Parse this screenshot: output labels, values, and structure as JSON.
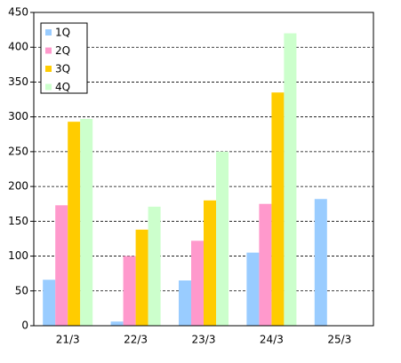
{
  "chart_data": {
    "type": "bar",
    "categories": [
      "21/3",
      "22/3",
      "23/3",
      "24/3",
      "25/3"
    ],
    "series": [
      {
        "name": "1Q",
        "color": "#99ccff",
        "values": [
          66,
          6,
          65,
          105,
          182
        ]
      },
      {
        "name": "2Q",
        "color": "#ff99cc",
        "values": [
          173,
          100,
          122,
          175,
          null
        ]
      },
      {
        "name": "3Q",
        "color": "#ffcc00",
        "values": [
          293,
          138,
          180,
          335,
          null
        ]
      },
      {
        "name": "4Q",
        "color": "#ccffcc",
        "values": [
          297,
          171,
          250,
          420,
          null
        ]
      }
    ],
    "ylim": [
      0,
      450
    ],
    "yticks": [
      0,
      50,
      100,
      150,
      200,
      250,
      300,
      350,
      400,
      450
    ],
    "grid": true,
    "legend": "top-left"
  }
}
